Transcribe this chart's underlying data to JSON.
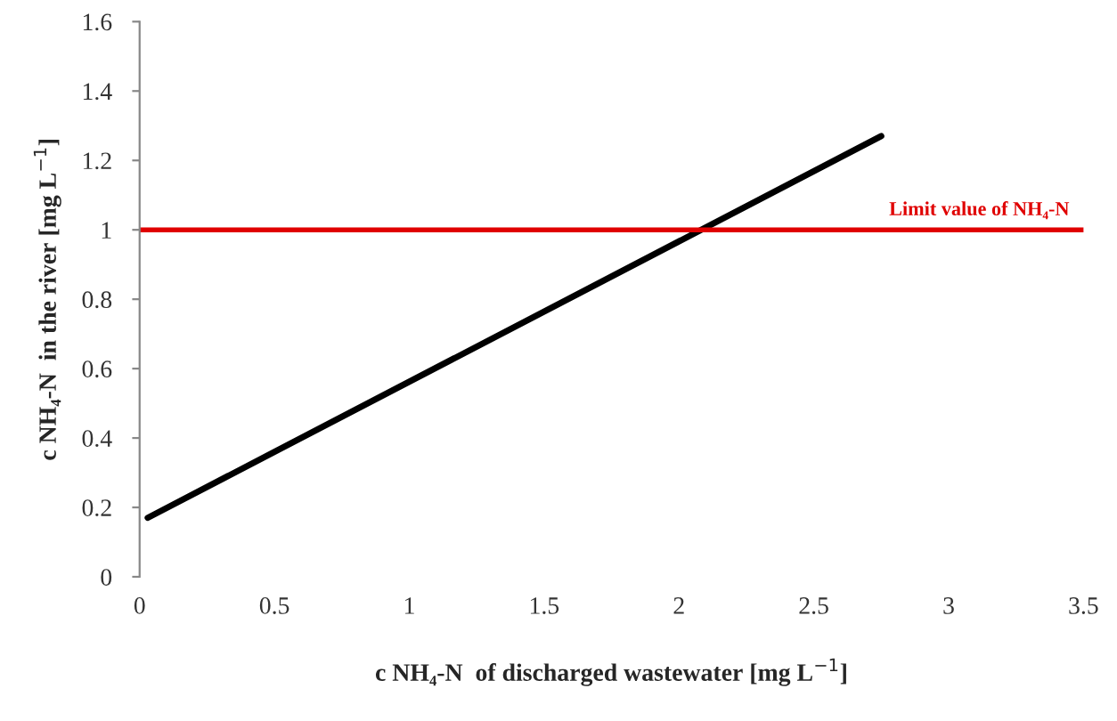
{
  "chart_data": {
    "type": "line",
    "xlabel": "c NH₄-N  of discharged wastewater [mg L$^{−1}$]",
    "ylabel": "c NH₄-N  in the river [mg L$^{−1}$]",
    "x": [
      0.03,
      2.75
    ],
    "series": [
      {
        "color": "#000000",
        "values": [
          0.17,
          1.27
        ]
      }
    ],
    "xlim": [
      0,
      3.5
    ],
    "xticks": [
      0,
      0.5,
      1,
      1.5,
      2,
      2.5,
      3,
      3.5
    ],
    "ylim": [
      0,
      1.6
    ],
    "yticks": [
      0,
      0.2,
      0.4,
      0.6,
      0.8,
      1,
      1.2,
      1.4,
      1.6
    ],
    "ref_lines": [
      {
        "axis": "y",
        "value": 1,
        "label": "Limit value of NH₄-N",
        "color": "#e00000",
        "line_style": "solid"
      }
    ],
    "grid": false,
    "legend": false,
    "marker": "none",
    "line_style": "solid"
  }
}
